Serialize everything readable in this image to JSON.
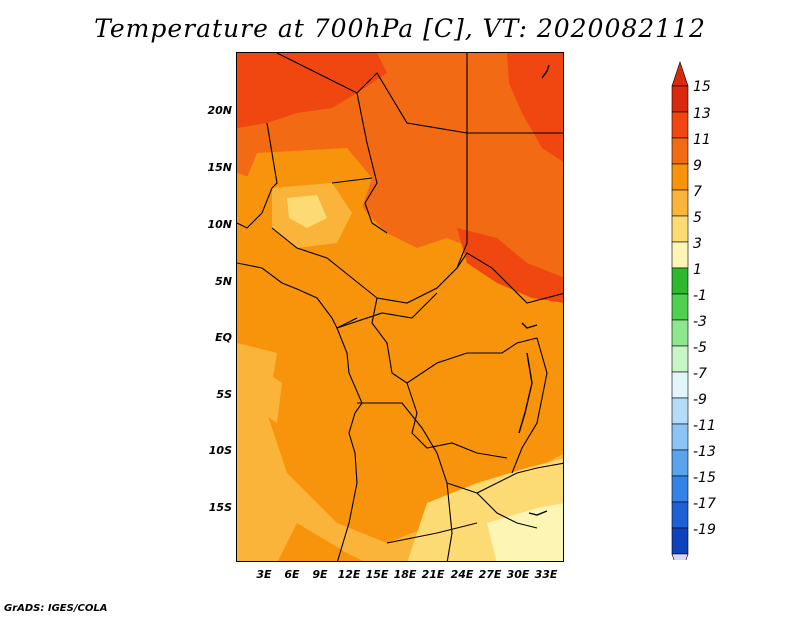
{
  "title": "Temperature at 700hPa [C], VT: 2020082112",
  "credit": "GrADS: IGES/COLA",
  "lat_ticks": [
    "20N",
    "15N",
    "10N",
    "5N",
    "EQ",
    "5S",
    "10S",
    "15S"
  ],
  "lon_ticks": [
    "3E",
    "6E",
    "9E",
    "12E",
    "15E",
    "18E",
    "21E",
    "24E",
    "27E",
    "30E",
    "33E"
  ],
  "colorbar": {
    "labels": [
      "15",
      "13",
      "11",
      "9",
      "7",
      "5",
      "3",
      "1",
      "-1",
      "-3",
      "-5",
      "-7",
      "-9",
      "-11",
      "-13",
      "-15",
      "-17",
      "-19"
    ],
    "colors": [
      "#d82a0c",
      "#f0460f",
      "#f26a14",
      "#f7940c",
      "#fbb43a",
      "#fddb74",
      "#fdf5b4",
      "#2eb82e",
      "#4fd14f",
      "#8de88d",
      "#c6f5c6",
      "#e1f5fb",
      "#b4dcf7",
      "#8cc4f5",
      "#5aa4ee",
      "#3384e6",
      "#1c62d6",
      "#0f42bd",
      "#0a2896",
      "#08146b"
    ],
    "top_arrow_color": "#d82a0c",
    "bottom_arrow_color": "#d8d8f5"
  },
  "map_colors": {
    "c5": "#fdf5b4",
    "c7": "#fddb74",
    "c9": "#fbb43a",
    "c11": "#f7940c",
    "c13": "#f26a14",
    "c15": "#f0460f"
  }
}
